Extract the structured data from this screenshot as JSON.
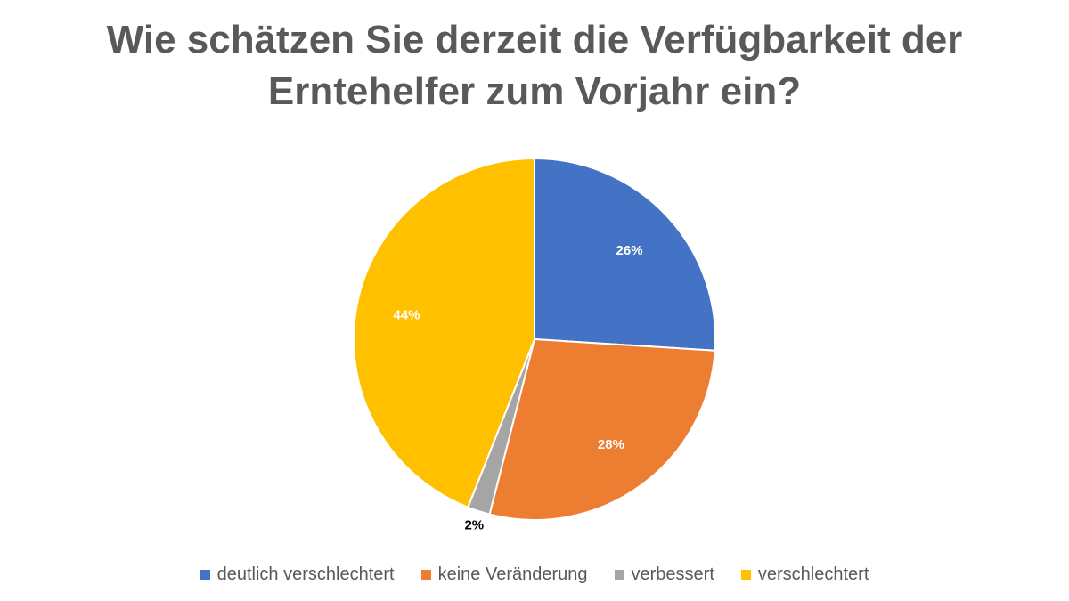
{
  "chart_data": {
    "type": "pie",
    "title": "Wie schätzen Sie derzeit die Verfügbarkeit der Erntehelfer zum Vorjahr ein?",
    "title_lines": [
      "Wie schätzen Sie derzeit die Verfügbarkeit der",
      "Erntehelfer zum Vorjahr ein?"
    ],
    "categories": [
      "deutlich verschlechtert",
      "keine Veränderung",
      "verbessert",
      "verschlechtert"
    ],
    "values": [
      26,
      28,
      2,
      44
    ],
    "labels": [
      "26%",
      "28%",
      "2%",
      "44%"
    ],
    "colors": [
      "#4472C4",
      "#ED7D31",
      "#A5A5A5",
      "#FFC000"
    ],
    "label_colors": [
      "#ffffff",
      "#ffffff",
      "#000000",
      "#ffffff"
    ],
    "legend_position": "bottom"
  }
}
